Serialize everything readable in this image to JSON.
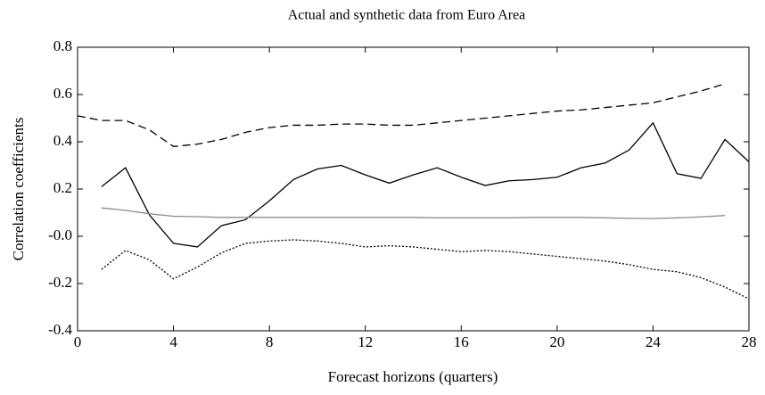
{
  "chart_data": {
    "type": "line",
    "title": "Actual and synthetic data from Euro Area",
    "x_label": "Forecast horizons (quarters)",
    "y_label": "Correlation coefficients",
    "x": [
      0,
      1,
      2,
      3,
      4,
      5,
      6,
      7,
      8,
      9,
      10,
      11,
      12,
      13,
      14,
      15,
      16,
      17,
      18,
      19,
      20,
      21,
      22,
      23,
      24,
      25,
      26,
      27,
      28
    ],
    "series": [
      {
        "color": "#000000",
        "dash": "solid",
        "values": [
          null,
          0.21,
          0.29,
          0.09,
          -0.03,
          -0.045,
          0.045,
          0.07,
          0.15,
          0.24,
          0.285,
          0.3,
          0.26,
          0.225,
          0.26,
          0.29,
          0.25,
          0.215,
          0.235,
          0.24,
          0.25,
          0.29,
          0.31,
          0.365,
          0.48,
          0.265,
          0.245,
          0.41,
          0.315
        ]
      },
      {
        "color": "#000000",
        "dash": "dashed",
        "values": [
          0.51,
          0.49,
          0.49,
          0.45,
          0.38,
          0.39,
          0.41,
          0.44,
          0.46,
          0.47,
          0.47,
          0.475,
          0.475,
          0.47,
          0.47,
          0.48,
          0.49,
          0.5,
          0.51,
          0.52,
          0.53,
          0.535,
          0.545,
          0.555,
          0.565,
          0.59,
          0.615,
          0.645,
          null
        ]
      },
      {
        "color": "#000000",
        "dash": "dotted",
        "values": [
          null,
          -0.14,
          -0.06,
          -0.1,
          -0.18,
          -0.13,
          -0.07,
          -0.03,
          -0.02,
          -0.015,
          -0.02,
          -0.03,
          -0.045,
          -0.04,
          -0.045,
          -0.055,
          -0.065,
          -0.06,
          -0.065,
          -0.075,
          -0.085,
          -0.095,
          -0.105,
          -0.12,
          -0.14,
          -0.15,
          -0.175,
          -0.215,
          -0.265
        ]
      },
      {
        "color": "#8c8c8c",
        "dash": "solid",
        "values": [
          null,
          0.12,
          0.11,
          0.095,
          0.085,
          0.083,
          0.08,
          0.08,
          0.08,
          0.08,
          0.08,
          0.08,
          0.08,
          0.08,
          0.08,
          0.078,
          0.078,
          0.078,
          0.078,
          0.08,
          0.08,
          0.08,
          0.078,
          0.076,
          0.075,
          0.078,
          0.082,
          0.088,
          null
        ]
      }
    ],
    "xlim": [
      0,
      28
    ],
    "xticks": [
      0,
      4,
      8,
      12,
      16,
      20,
      24,
      28
    ],
    "ylim": [
      -0.4,
      0.8
    ],
    "yticks": [
      -0.4,
      -0.2,
      {
        "value": 0,
        "label": "-0.0"
      },
      0.2,
      0.4,
      0.6,
      0.8
    ],
    "grid": false
  }
}
